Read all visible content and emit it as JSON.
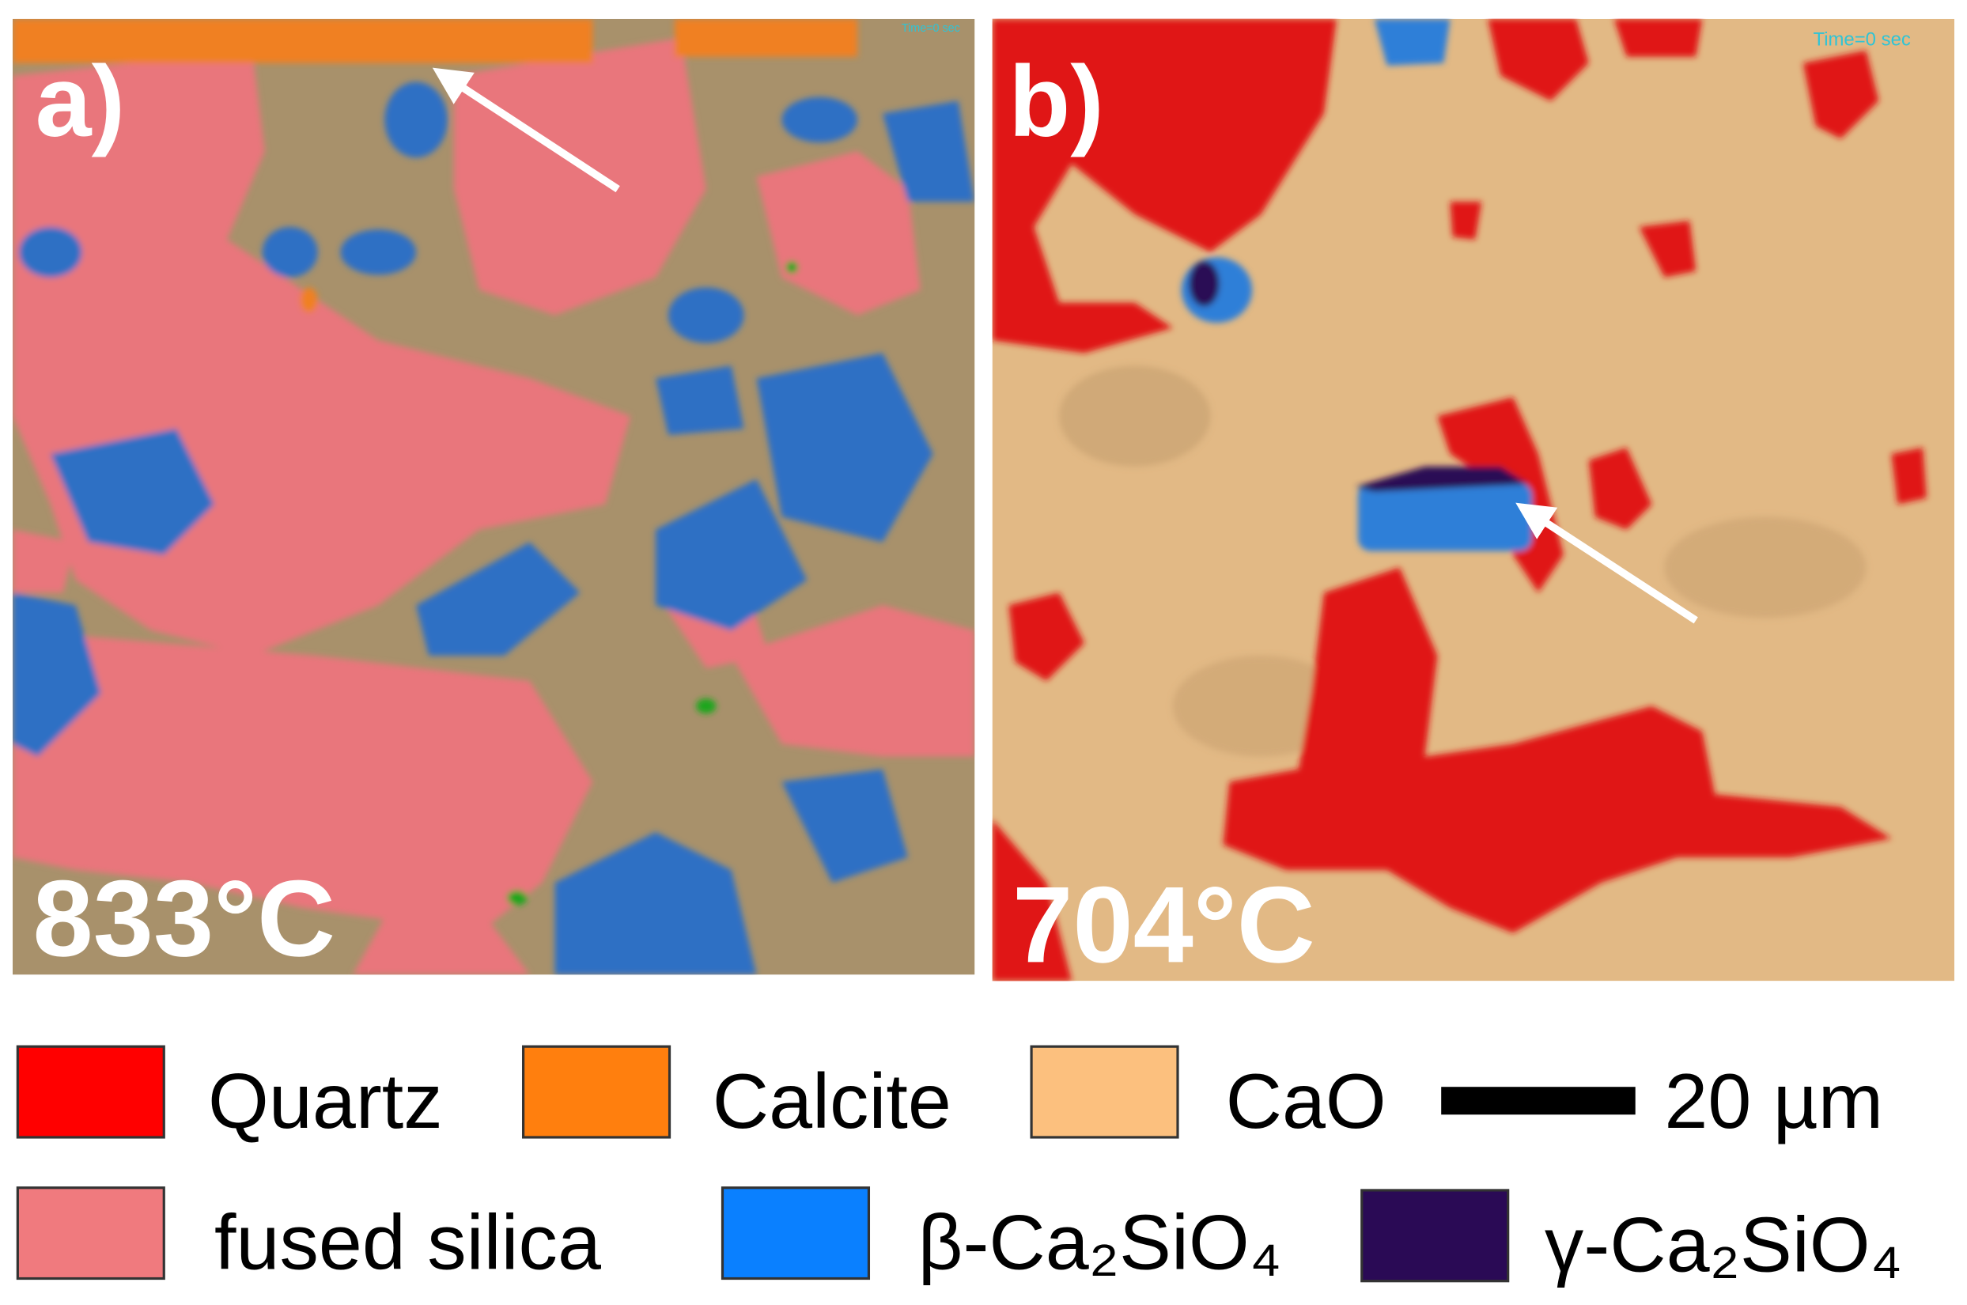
{
  "panels": [
    {
      "label": "a)",
      "temperature": "833°C",
      "time": "Time=0 sec"
    },
    {
      "label": "b)",
      "temperature": "704°C",
      "time": "Time=0 sec"
    }
  ],
  "legend": [
    {
      "label": "Quartz",
      "color": "#ff0000"
    },
    {
      "label": "Calcite",
      "color": "#ff7f0e"
    },
    {
      "label": "CaO",
      "color": "#fcc07e"
    },
    {
      "label": "fused silica",
      "color": "#f07a7e"
    },
    {
      "label": "β-Ca₂SiO₄",
      "color": "#0a80ff"
    },
    {
      "label": "γ-Ca₂SiO₄",
      "color": "#2a0a55"
    }
  ],
  "scale_bar": {
    "label": "20 µm"
  }
}
